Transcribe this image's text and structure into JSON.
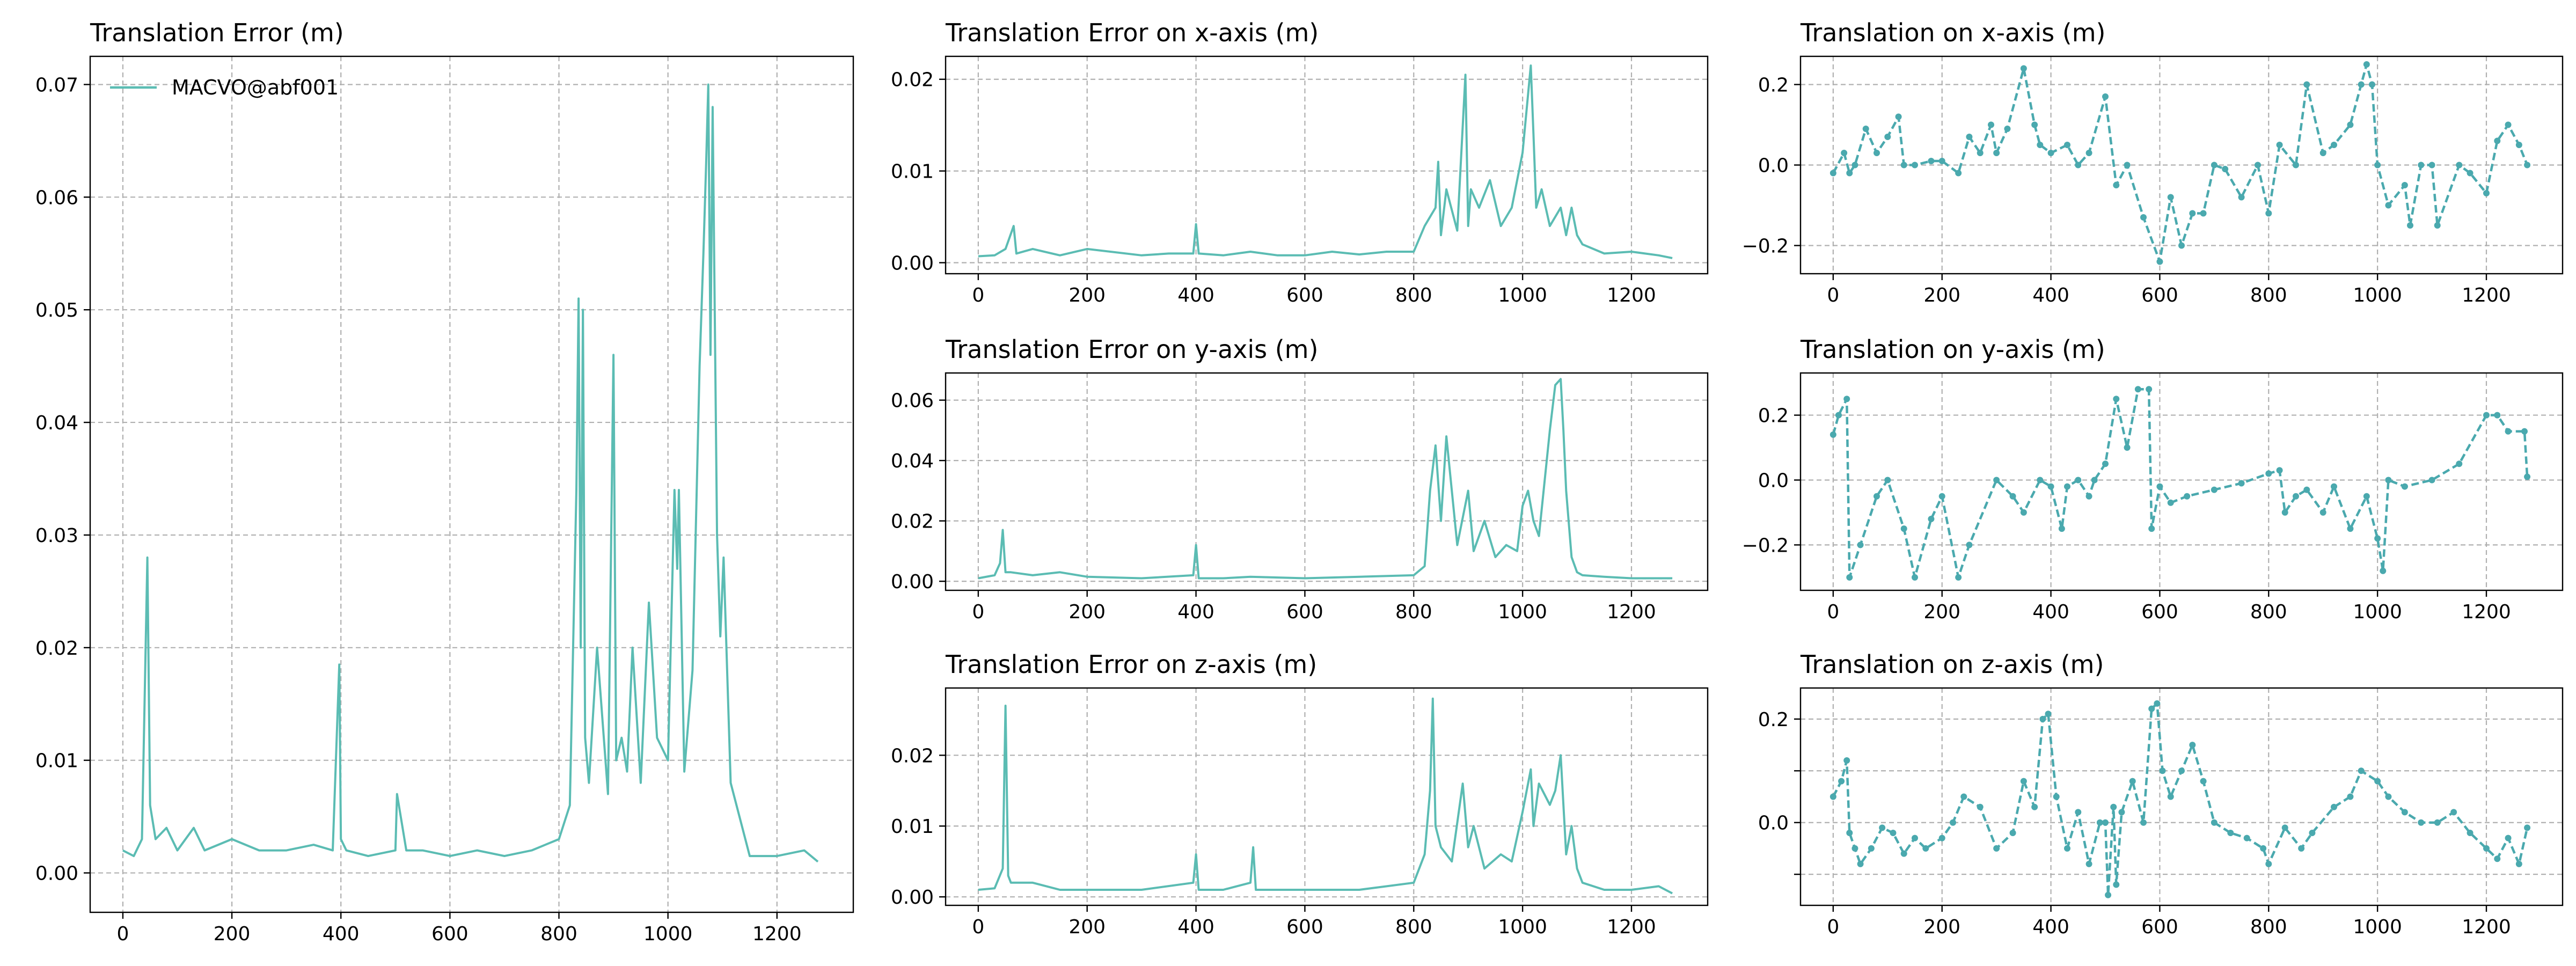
{
  "figure": {
    "legend_label": "MACVO@abf001",
    "legend_location": "top-left"
  },
  "chart_data": [
    {
      "id": "err-total",
      "type": "line",
      "title": "Translation Error (m)",
      "xlim": [
        -60,
        1340
      ],
      "ylim": [
        -0.0035,
        0.0725
      ],
      "xticks": [
        0,
        200,
        400,
        600,
        800,
        1000,
        1200
      ],
      "yticks": [
        0.0,
        0.01,
        0.02,
        0.03,
        0.04,
        0.05,
        0.06,
        0.07
      ],
      "ytick_labels": [
        "0.00",
        "0.01",
        "0.02",
        "0.03",
        "0.04",
        "0.05",
        "0.06",
        "0.07"
      ],
      "grid": true,
      "legend": "top-left",
      "color": "#5bbcb3",
      "series": [
        {
          "name": "MACVO@abf001",
          "x": [
            0,
            20,
            35,
            45,
            50,
            60,
            80,
            100,
            130,
            150,
            200,
            250,
            300,
            350,
            385,
            397,
            400,
            410,
            450,
            500,
            503,
            520,
            550,
            600,
            650,
            700,
            750,
            800,
            820,
            832,
            836,
            840,
            844,
            848,
            855,
            870,
            890,
            900,
            905,
            915,
            925,
            935,
            950,
            965,
            980,
            1000,
            1012,
            1017,
            1020,
            1030,
            1045,
            1058,
            1065,
            1070,
            1074,
            1078,
            1082,
            1090,
            1096,
            1102,
            1115,
            1150,
            1200,
            1250,
            1275
          ],
          "y": [
            0.002,
            0.0015,
            0.003,
            0.028,
            0.006,
            0.003,
            0.004,
            0.002,
            0.004,
            0.002,
            0.003,
            0.002,
            0.002,
            0.0025,
            0.002,
            0.0185,
            0.003,
            0.002,
            0.0015,
            0.002,
            0.007,
            0.002,
            0.002,
            0.0015,
            0.002,
            0.0015,
            0.002,
            0.003,
            0.006,
            0.034,
            0.051,
            0.02,
            0.05,
            0.012,
            0.008,
            0.02,
            0.007,
            0.046,
            0.01,
            0.012,
            0.009,
            0.02,
            0.008,
            0.024,
            0.012,
            0.01,
            0.034,
            0.027,
            0.034,
            0.009,
            0.018,
            0.045,
            0.055,
            0.063,
            0.07,
            0.046,
            0.068,
            0.03,
            0.021,
            0.028,
            0.008,
            0.0015,
            0.0015,
            0.002,
            0.001
          ]
        }
      ]
    },
    {
      "id": "err-x",
      "type": "line",
      "title": "Translation Error on x-axis (m)",
      "xlim": [
        -60,
        1340
      ],
      "ylim": [
        -0.0012,
        0.0225
      ],
      "xticks": [
        0,
        200,
        400,
        600,
        800,
        1000,
        1200
      ],
      "yticks": [
        0.0,
        0.01,
        0.02
      ],
      "ytick_labels": [
        "0.00",
        "0.01",
        "0.02"
      ],
      "grid": true,
      "color": "#5bbcb3",
      "series": [
        {
          "name": "MACVO@abf001",
          "x": [
            0,
            30,
            50,
            65,
            70,
            100,
            150,
            200,
            300,
            350,
            395,
            400,
            405,
            450,
            500,
            550,
            600,
            650,
            700,
            750,
            800,
            820,
            840,
            845,
            850,
            860,
            880,
            895,
            900,
            905,
            920,
            940,
            960,
            980,
            1000,
            1015,
            1020,
            1025,
            1035,
            1050,
            1070,
            1080,
            1090,
            1100,
            1110,
            1150,
            1200,
            1250,
            1275
          ],
          "y": [
            0.0007,
            0.0008,
            0.0015,
            0.004,
            0.001,
            0.0015,
            0.0008,
            0.0015,
            0.0008,
            0.001,
            0.001,
            0.0042,
            0.001,
            0.0008,
            0.0012,
            0.0008,
            0.0008,
            0.0012,
            0.0009,
            0.0012,
            0.0012,
            0.004,
            0.006,
            0.011,
            0.003,
            0.008,
            0.0035,
            0.0205,
            0.004,
            0.008,
            0.006,
            0.009,
            0.004,
            0.006,
            0.012,
            0.0215,
            0.014,
            0.006,
            0.008,
            0.004,
            0.006,
            0.003,
            0.006,
            0.003,
            0.002,
            0.001,
            0.0012,
            0.0008,
            0.0005
          ]
        }
      ]
    },
    {
      "id": "trans-x",
      "type": "line",
      "title": "Translation on x-axis (m)",
      "xlim": [
        -60,
        1340
      ],
      "ylim": [
        -0.27,
        0.27
      ],
      "xticks": [
        0,
        200,
        400,
        600,
        800,
        1000,
        1200
      ],
      "yticks": [
        -0.2,
        0.0,
        0.2
      ],
      "ytick_labels": [
        "−0.2",
        "0.0",
        "0.2"
      ],
      "grid": true,
      "color": "#4aa9ae",
      "markers": true,
      "series": [
        {
          "name": "MACVO@abf001",
          "x": [
            0,
            20,
            30,
            40,
            60,
            80,
            100,
            120,
            130,
            150,
            180,
            200,
            230,
            250,
            270,
            290,
            300,
            320,
            350,
            370,
            380,
            400,
            430,
            450,
            470,
            500,
            520,
            540,
            570,
            600,
            620,
            640,
            660,
            680,
            700,
            720,
            750,
            780,
            800,
            820,
            850,
            870,
            900,
            920,
            950,
            970,
            980,
            990,
            1000,
            1020,
            1050,
            1060,
            1080,
            1100,
            1110,
            1150,
            1170,
            1200,
            1220,
            1240,
            1260,
            1275
          ],
          "y": [
            -0.02,
            0.03,
            -0.02,
            0.0,
            0.09,
            0.03,
            0.07,
            0.12,
            0.0,
            0.0,
            0.01,
            0.01,
            -0.02,
            0.07,
            0.03,
            0.1,
            0.03,
            0.09,
            0.24,
            0.1,
            0.05,
            0.03,
            0.05,
            0.0,
            0.03,
            0.17,
            -0.05,
            0.0,
            -0.13,
            -0.24,
            -0.08,
            -0.2,
            -0.12,
            -0.12,
            0.0,
            -0.01,
            -0.08,
            0.0,
            -0.12,
            0.05,
            0.0,
            0.2,
            0.03,
            0.05,
            0.1,
            0.2,
            0.25,
            0.2,
            0.0,
            -0.1,
            -0.05,
            -0.15,
            0.0,
            0.0,
            -0.15,
            0.0,
            -0.02,
            -0.07,
            0.06,
            0.1,
            0.05,
            0.0
          ]
        }
      ]
    },
    {
      "id": "err-y",
      "type": "line",
      "title": "Translation Error on y-axis (m)",
      "xlim": [
        -60,
        1340
      ],
      "ylim": [
        -0.003,
        0.069
      ],
      "xticks": [
        0,
        200,
        400,
        600,
        800,
        1000,
        1200
      ],
      "yticks": [
        0.0,
        0.02,
        0.04,
        0.06
      ],
      "ytick_labels": [
        "0.00",
        "0.02",
        "0.04",
        "0.06"
      ],
      "grid": true,
      "color": "#5bbcb3",
      "series": [
        {
          "name": "MACVO@abf001",
          "x": [
            0,
            30,
            40,
            45,
            50,
            60,
            100,
            150,
            200,
            300,
            395,
            400,
            405,
            450,
            500,
            600,
            700,
            800,
            820,
            830,
            840,
            850,
            860,
            880,
            900,
            910,
            930,
            950,
            970,
            990,
            1000,
            1010,
            1020,
            1030,
            1050,
            1060,
            1070,
            1075,
            1080,
            1090,
            1100,
            1110,
            1150,
            1200,
            1275
          ],
          "y": [
            0.001,
            0.002,
            0.006,
            0.017,
            0.003,
            0.003,
            0.002,
            0.003,
            0.0015,
            0.001,
            0.002,
            0.012,
            0.001,
            0.001,
            0.0015,
            0.001,
            0.0015,
            0.002,
            0.005,
            0.03,
            0.045,
            0.02,
            0.048,
            0.012,
            0.03,
            0.01,
            0.02,
            0.008,
            0.012,
            0.01,
            0.025,
            0.03,
            0.02,
            0.015,
            0.05,
            0.065,
            0.067,
            0.05,
            0.03,
            0.008,
            0.003,
            0.002,
            0.0015,
            0.001,
            0.001
          ]
        }
      ]
    },
    {
      "id": "trans-y",
      "type": "line",
      "title": "Translation on y-axis (m)",
      "xlim": [
        -60,
        1340
      ],
      "ylim": [
        -0.34,
        0.33
      ],
      "xticks": [
        0,
        200,
        400,
        600,
        800,
        1000,
        1200
      ],
      "yticks": [
        -0.2,
        0.0,
        0.2
      ],
      "ytick_labels": [
        "−0.2",
        "0.0",
        "0.2"
      ],
      "grid": true,
      "color": "#4aa9ae",
      "markers": true,
      "series": [
        {
          "name": "MACVO@abf001",
          "x": [
            0,
            10,
            25,
            30,
            50,
            80,
            100,
            130,
            150,
            180,
            200,
            230,
            250,
            300,
            330,
            350,
            380,
            400,
            420,
            430,
            450,
            470,
            480,
            500,
            520,
            540,
            560,
            580,
            585,
            600,
            620,
            650,
            700,
            750,
            800,
            820,
            830,
            850,
            870,
            900,
            920,
            950,
            980,
            1000,
            1010,
            1020,
            1050,
            1100,
            1150,
            1200,
            1220,
            1240,
            1270,
            1275
          ],
          "y": [
            0.14,
            0.2,
            0.25,
            -0.3,
            -0.2,
            -0.05,
            0.0,
            -0.15,
            -0.3,
            -0.12,
            -0.05,
            -0.3,
            -0.2,
            0.0,
            -0.05,
            -0.1,
            0.0,
            -0.02,
            -0.15,
            -0.02,
            0.0,
            -0.05,
            0.0,
            0.05,
            0.25,
            0.1,
            0.28,
            0.28,
            -0.15,
            -0.02,
            -0.07,
            -0.05,
            -0.03,
            -0.01,
            0.02,
            0.03,
            -0.1,
            -0.05,
            -0.03,
            -0.1,
            -0.02,
            -0.15,
            -0.05,
            -0.18,
            -0.28,
            0.0,
            -0.02,
            0.0,
            0.05,
            0.2,
            0.2,
            0.15,
            0.15,
            0.01
          ]
        }
      ]
    },
    {
      "id": "err-z",
      "type": "line",
      "title": "Translation Error on z-axis (m)",
      "xlim": [
        -60,
        1340
      ],
      "ylim": [
        -0.0012,
        0.0295
      ],
      "xticks": [
        0,
        200,
        400,
        600,
        800,
        1000,
        1200
      ],
      "yticks": [
        0.0,
        0.01,
        0.02
      ],
      "ytick_labels": [
        "0.00",
        "0.01",
        "0.02"
      ],
      "grid": true,
      "color": "#5bbcb3",
      "series": [
        {
          "name": "MACVO@abf001",
          "x": [
            0,
            30,
            45,
            50,
            55,
            60,
            100,
            150,
            200,
            300,
            395,
            400,
            405,
            450,
            500,
            505,
            510,
            600,
            700,
            800,
            820,
            830,
            835,
            840,
            850,
            870,
            890,
            900,
            910,
            930,
            960,
            980,
            1000,
            1015,
            1020,
            1030,
            1050,
            1060,
            1070,
            1080,
            1090,
            1100,
            1110,
            1150,
            1200,
            1250,
            1275
          ],
          "y": [
            0.001,
            0.0012,
            0.004,
            0.027,
            0.003,
            0.002,
            0.002,
            0.001,
            0.001,
            0.001,
            0.002,
            0.006,
            0.001,
            0.001,
            0.002,
            0.007,
            0.001,
            0.001,
            0.001,
            0.002,
            0.006,
            0.015,
            0.028,
            0.01,
            0.007,
            0.005,
            0.016,
            0.007,
            0.01,
            0.004,
            0.006,
            0.005,
            0.012,
            0.018,
            0.01,
            0.016,
            0.013,
            0.015,
            0.02,
            0.006,
            0.01,
            0.004,
            0.002,
            0.001,
            0.001,
            0.0015,
            0.0005
          ]
        }
      ]
    },
    {
      "id": "trans-z",
      "type": "line",
      "title": "Translation on z-axis (m)",
      "xlim": [
        -60,
        1340
      ],
      "ylim": [
        -0.16,
        0.26
      ],
      "xticks": [
        0,
        200,
        400,
        600,
        800,
        1000,
        1200
      ],
      "yticks": [
        -0.1,
        0.0,
        0.1,
        0.2
      ],
      "ytick_labels": [
        "",
        "0.0",
        "",
        "0.2"
      ],
      "grid": true,
      "color": "#4aa9ae",
      "markers": true,
      "series": [
        {
          "name": "MACVO@abf001",
          "x": [
            0,
            15,
            25,
            30,
            40,
            50,
            70,
            90,
            110,
            130,
            150,
            170,
            200,
            220,
            240,
            270,
            300,
            330,
            350,
            370,
            385,
            395,
            410,
            430,
            450,
            470,
            490,
            500,
            505,
            515,
            520,
            530,
            550,
            570,
            585,
            595,
            605,
            620,
            640,
            660,
            680,
            700,
            730,
            760,
            790,
            800,
            830,
            860,
            880,
            920,
            950,
            970,
            1000,
            1020,
            1050,
            1080,
            1110,
            1140,
            1170,
            1200,
            1220,
            1240,
            1260,
            1275
          ],
          "y": [
            0.05,
            0.08,
            0.12,
            -0.02,
            -0.05,
            -0.08,
            -0.05,
            -0.01,
            -0.02,
            -0.06,
            -0.03,
            -0.05,
            -0.03,
            0.0,
            0.05,
            0.03,
            -0.05,
            -0.02,
            0.08,
            0.03,
            0.2,
            0.21,
            0.05,
            -0.05,
            0.02,
            -0.08,
            0.0,
            0.0,
            -0.14,
            0.03,
            -0.12,
            0.02,
            0.08,
            0.0,
            0.22,
            0.23,
            0.1,
            0.05,
            0.1,
            0.15,
            0.08,
            0.0,
            -0.02,
            -0.03,
            -0.05,
            -0.08,
            -0.01,
            -0.05,
            -0.02,
            0.03,
            0.05,
            0.1,
            0.08,
            0.05,
            0.02,
            0.0,
            0.0,
            0.02,
            -0.02,
            -0.05,
            -0.07,
            -0.03,
            -0.08,
            -0.01
          ]
        }
      ]
    }
  ]
}
